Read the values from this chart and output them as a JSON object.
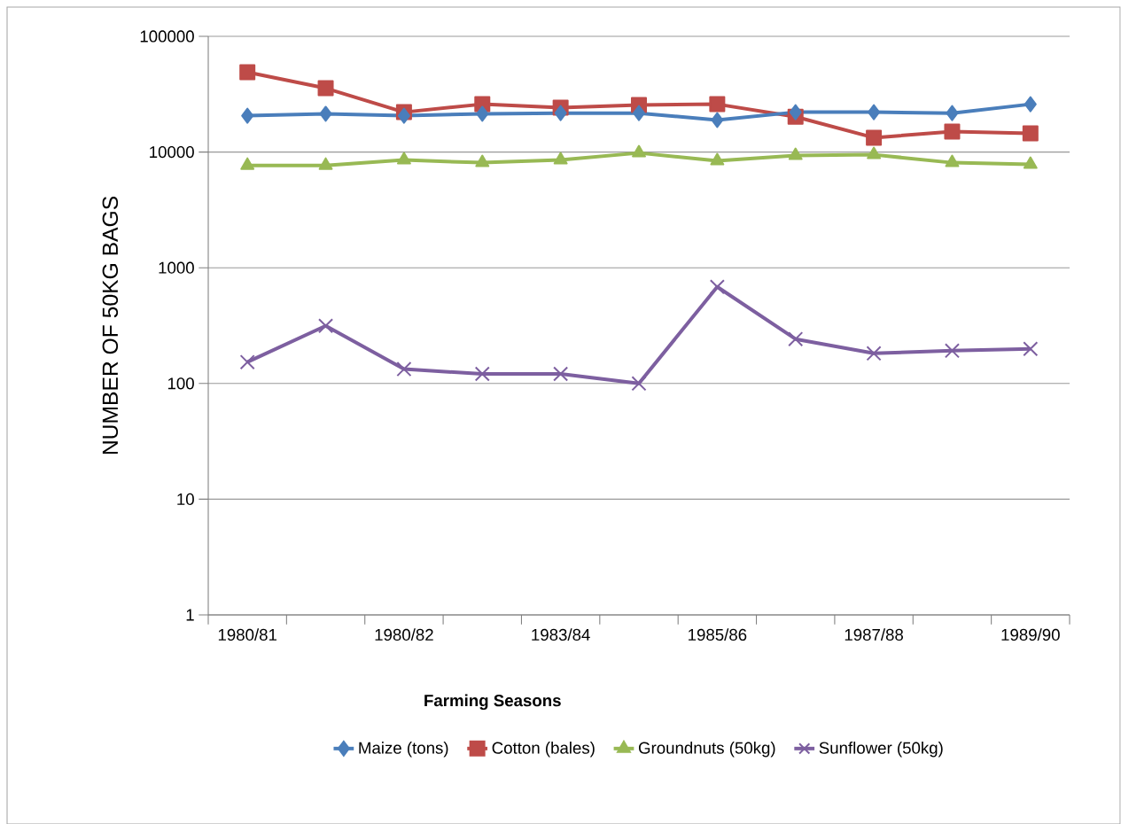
{
  "chart_data": {
    "type": "line",
    "xlabel": "Farming Seasons",
    "ylabel": "NUMBER OF 50KG BAGS",
    "categories": [
      "1980/81",
      null,
      "1980/82",
      null,
      "1983/84",
      null,
      "1985/86",
      null,
      "1987/88",
      null,
      "1989/90"
    ],
    "series": [
      {
        "name": "Maize (tons)",
        "color": "#4a7ebb",
        "marker": "diamond",
        "values": [
          20600,
          21400,
          20600,
          21400,
          21700,
          21700,
          18900,
          22100,
          22100,
          21700,
          25900
        ]
      },
      {
        "name": "Cotton (bales)",
        "color": "#be4b48",
        "marker": "square",
        "values": [
          48900,
          35600,
          22100,
          25900,
          24200,
          25500,
          25900,
          20200,
          13300,
          15000,
          14500
        ]
      },
      {
        "name": "Groundnuts (50kg)",
        "color": "#98b954",
        "marker": "triangle",
        "values": [
          7670,
          7670,
          8530,
          8090,
          8530,
          9820,
          8380,
          9320,
          9480,
          8090,
          7810
        ]
      },
      {
        "name": "Sunflower (50kg)",
        "color": "#7d5fa0",
        "marker": "cross",
        "values": [
          153,
          315,
          133,
          121,
          121,
          100,
          684,
          242,
          182,
          192,
          199
        ]
      }
    ],
    "log": "y",
    "ylim": [
      1,
      100000
    ],
    "yticks": [
      1,
      10,
      100,
      1000,
      10000,
      100000
    ],
    "grid": "y",
    "legend": "bottom",
    "line_style": "solid"
  }
}
